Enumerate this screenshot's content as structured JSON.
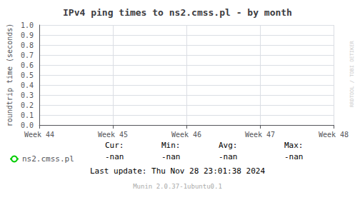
{
  "chart_data": {
    "type": "line",
    "title": "IPv4 ping times to ns2.cmss.pl - by month",
    "ylabel": "roundtrip time (seconds)",
    "categories": [
      "Week 44",
      "Week 45",
      "Week 46",
      "Week 47",
      "Week 48"
    ],
    "series": [
      {
        "name": "ns2.cmss.pl",
        "color": "#00cc00",
        "values": [
          null,
          null,
          null,
          null,
          null
        ]
      }
    ],
    "ylim": [
      0.0,
      1.0
    ],
    "yticks": [
      {
        "value": 0.0,
        "label": "0.0"
      },
      0.1,
      0.2,
      0.3,
      0.4,
      0.5,
      0.6,
      0.7,
      0.8,
      0.9,
      {
        "value": 1.0,
        "label": "1.0"
      }
    ],
    "grid": true,
    "annotations": [
      "Cur:",
      "Min:",
      "Avg:",
      "Max:",
      "-nan",
      "-nan",
      "-nan",
      "-nan",
      "Last update: Thu Nov 28 23:01:38 2024",
      "Munin 2.0.37-1ubuntu0.1",
      "RRDTOOL / TOBI OETIKER"
    ]
  }
}
